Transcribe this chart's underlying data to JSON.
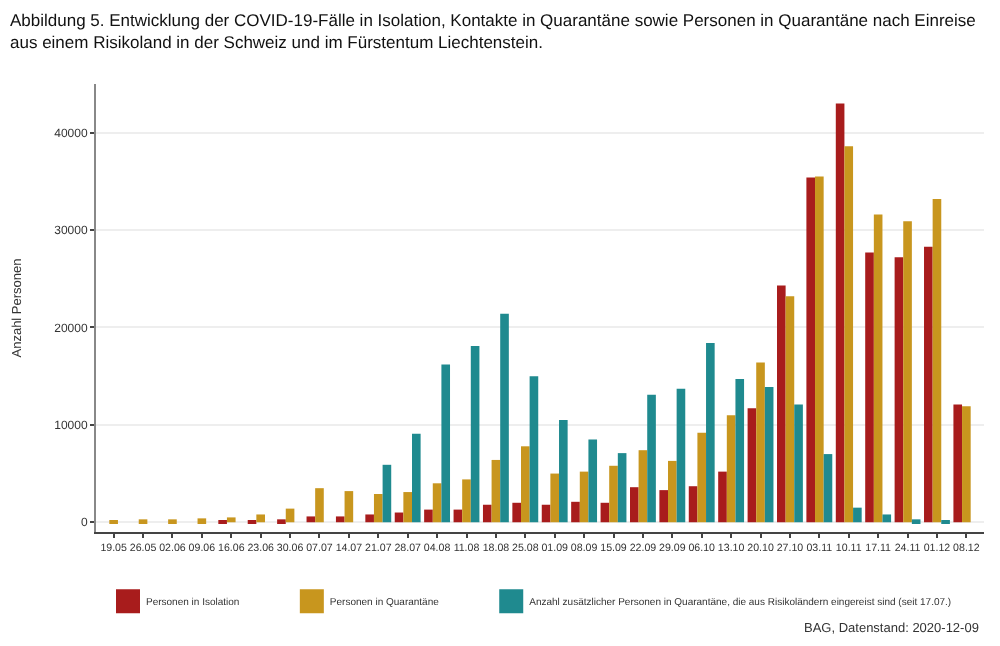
{
  "chart_data": {
    "type": "bar",
    "title": "Abbildung 5. Entwicklung der COVID-19-Fälle in Isolation, Kontakte in Quarantäne sowie Personen in Quarantäne nach Einreise aus einem Risikoland in der Schweiz und im Fürstentum Liechtenstein.",
    "ylabel": "Anzahl Personen",
    "categories": [
      "19.05",
      "26.05",
      "02.06",
      "09.06",
      "16.06",
      "23.06",
      "30.06",
      "07.07",
      "14.07",
      "21.07",
      "28.07",
      "04.08",
      "11.08",
      "18.08",
      "25.08",
      "01.09",
      "08.09",
      "15.09",
      "22.09",
      "29.09",
      "06.10",
      "13.10",
      "20.10",
      "27.10",
      "03.11",
      "10.11",
      "17.11",
      "24.11",
      "01.12",
      "08.12"
    ],
    "series": [
      {
        "name": "Personen in Isolation",
        "color": "#a81c1c",
        "values": [
          0,
          0,
          0,
          0,
          100,
          200,
          300,
          600,
          600,
          800,
          1000,
          1300,
          1300,
          1800,
          2000,
          1800,
          2100,
          2000,
          3600,
          3300,
          3700,
          5200,
          11700,
          24300,
          35400,
          43000,
          27700,
          27200,
          28300,
          12100
        ]
      },
      {
        "name": "Personen in Quarantäne",
        "color": "#c8961e",
        "values": [
          100,
          300,
          300,
          400,
          500,
          800,
          1400,
          3500,
          3200,
          2900,
          3100,
          4000,
          4400,
          6400,
          7800,
          5000,
          5200,
          5800,
          7400,
          6300,
          9200,
          11000,
          16400,
          23200,
          35500,
          38600,
          31600,
          30900,
          33200,
          11900
        ]
      },
      {
        "name": "Anzahl zusätzlicher Personen in Quarantäne, die aus Risikoländern eingereist sind (seit 17.07.)",
        "color": "#1f8a8f",
        "values": [
          null,
          null,
          null,
          null,
          null,
          null,
          null,
          null,
          null,
          5900,
          9100,
          16200,
          18100,
          21400,
          15000,
          10500,
          8500,
          7100,
          13100,
          13700,
          18400,
          14700,
          13900,
          12100,
          7000,
          1500,
          800,
          300,
          200,
          0
        ]
      }
    ],
    "ylim": [
      -1000,
      45000
    ],
    "yticks": [
      0,
      10000,
      20000,
      30000,
      40000
    ],
    "grid": "y",
    "legend": "bottom",
    "annotations": [
      "BAG, Datenstand: 2020-12-09"
    ]
  }
}
